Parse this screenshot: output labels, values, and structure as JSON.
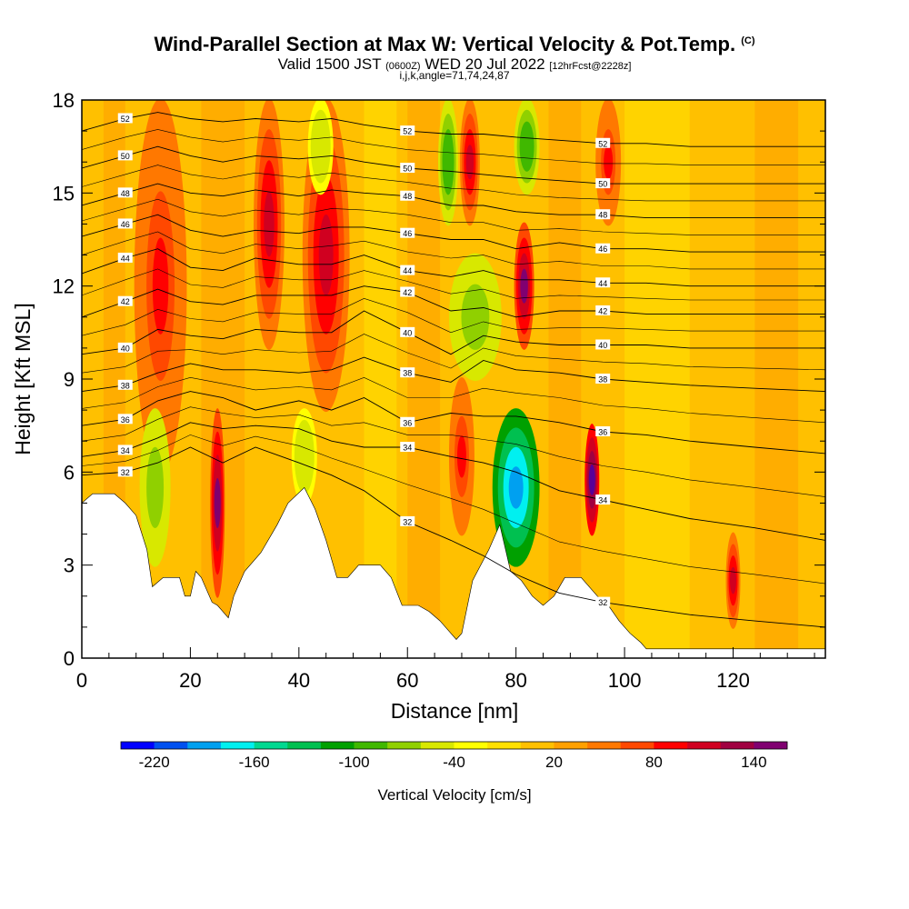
{
  "header": {
    "title_main": "Wind-Parallel Section at Max W: Vertical Velocity & Pot.Temp.",
    "title_mark": "(C)",
    "valid_prefix": "Valid 1500 JST",
    "valid_utc": "(0600Z)",
    "valid_date": "WED 20 Jul 2022",
    "forecast": "[12hrFcst@2228z]",
    "grid_info": "i,j,k,angle=71,74,24,87"
  },
  "chart_data": {
    "type": "heatmap",
    "xlabel": "Distance [nm]",
    "ylabel": "Height [Kft MSL]",
    "xlim": [
      0,
      137
    ],
    "ylim": [
      0,
      18
    ],
    "x_ticks": [
      0,
      20,
      40,
      60,
      80,
      100,
      120
    ],
    "y_ticks": [
      0,
      3,
      6,
      9,
      12,
      15,
      18
    ],
    "colorbar": {
      "title": "Vertical Velocity [cm/s]",
      "levels": [
        -240,
        -220,
        -200,
        -180,
        -160,
        -140,
        -120,
        -100,
        -80,
        -60,
        -40,
        -20,
        0,
        20,
        40,
        60,
        80,
        100,
        120,
        140,
        160
      ],
      "tick_labels": [
        -220,
        -160,
        -100,
        -40,
        20,
        80,
        140
      ],
      "colors": [
        "#0000ff",
        "#0050f0",
        "#00a0f0",
        "#00f0f0",
        "#00d890",
        "#00c050",
        "#00a000",
        "#40b800",
        "#90d000",
        "#d8e800",
        "#ffff00",
        "#ffe000",
        "#ffc000",
        "#ffa000",
        "#ff7800",
        "#ff4800",
        "#ff0000",
        "#d00020",
        "#a00040",
        "#800070",
        "#580098"
      ]
    },
    "terrain_kft": [
      [
        0,
        5.0
      ],
      [
        2,
        5.3
      ],
      [
        6,
        5.3
      ],
      [
        8,
        5.0
      ],
      [
        10,
        4.6
      ],
      [
        12,
        3.5
      ],
      [
        13,
        2.3
      ],
      [
        15,
        2.6
      ],
      [
        18,
        2.6
      ],
      [
        19,
        2.0
      ],
      [
        20,
        2.0
      ],
      [
        21,
        2.8
      ],
      [
        22,
        2.6
      ],
      [
        24,
        1.8
      ],
      [
        25,
        1.7
      ],
      [
        26,
        1.5
      ],
      [
        27,
        1.3
      ],
      [
        28,
        2.0
      ],
      [
        30,
        2.8
      ],
      [
        33,
        3.4
      ],
      [
        36,
        4.3
      ],
      [
        38,
        5.0
      ],
      [
        41,
        5.5
      ],
      [
        43,
        4.8
      ],
      [
        45,
        3.8
      ],
      [
        47,
        2.6
      ],
      [
        49,
        2.6
      ],
      [
        51,
        3.0
      ],
      [
        55,
        3.0
      ],
      [
        57,
        2.6
      ],
      [
        59,
        1.7
      ],
      [
        62,
        1.7
      ],
      [
        64,
        1.5
      ],
      [
        66,
        1.2
      ],
      [
        68,
        0.8
      ],
      [
        69,
        0.6
      ],
      [
        70,
        0.8
      ],
      [
        72,
        2.5
      ],
      [
        75,
        3.5
      ],
      [
        77,
        4.3
      ],
      [
        79,
        2.8
      ],
      [
        81,
        2.5
      ],
      [
        83,
        2.0
      ],
      [
        85,
        1.7
      ],
      [
        87,
        2.0
      ],
      [
        89,
        2.6
      ],
      [
        92,
        2.6
      ],
      [
        95,
        2.0
      ],
      [
        97,
        1.7
      ],
      [
        99,
        1.2
      ],
      [
        101,
        0.8
      ],
      [
        103,
        0.5
      ],
      [
        104,
        0.3
      ],
      [
        137,
        0.3
      ]
    ],
    "updraft_cores": [
      {
        "x0": 11,
        "x1": 18,
        "y0": 6,
        "y1": 18,
        "w": 80
      },
      {
        "x0": 25,
        "x1": 25,
        "y0": 2,
        "y1": 8,
        "w": 140
      },
      {
        "x0": 33,
        "x1": 36,
        "y0": 10,
        "y1": 18,
        "w": 100
      },
      {
        "x0": 42,
        "x1": 48,
        "y0": 8,
        "y1": 18,
        "w": 100
      },
      {
        "x0": 69,
        "x1": 71,
        "y0": 4,
        "y1": 9,
        "w": 80
      },
      {
        "x0": 71,
        "x1": 72,
        "y0": 14,
        "y1": 18,
        "w": 100
      },
      {
        "x0": 81,
        "x1": 82,
        "y0": 10,
        "y1": 14,
        "w": 140
      },
      {
        "x0": 94,
        "x1": 94,
        "y0": 4,
        "y1": 7.5,
        "w": 160
      },
      {
        "x0": 96,
        "x1": 98,
        "y0": 14,
        "y1": 18,
        "w": 80
      },
      {
        "x0": 120,
        "x1": 120,
        "y0": 1,
        "y1": 4,
        "w": 100
      }
    ],
    "downdraft_cores": [
      {
        "x0": 12,
        "x1": 15,
        "y0": 3,
        "y1": 8,
        "w": -80
      },
      {
        "x0": 40,
        "x1": 42,
        "y0": 5,
        "y1": 8,
        "w": -60
      },
      {
        "x0": 43,
        "x1": 45,
        "y0": 15,
        "y1": 18,
        "w": -60
      },
      {
        "x0": 67,
        "x1": 68,
        "y0": 14,
        "y1": 18,
        "w": -100
      },
      {
        "x0": 69,
        "x1": 76,
        "y0": 9,
        "y1": 13,
        "w": -80
      },
      {
        "x0": 77,
        "x1": 83,
        "y0": 3,
        "y1": 8,
        "w": -200
      },
      {
        "x0": 81,
        "x1": 83,
        "y0": 15,
        "y1": 18,
        "w": -100
      }
    ],
    "theta_contours": [
      {
        "level": 32,
        "label": "32",
        "y": [
          5.9,
          6.0,
          6.3,
          6.8,
          6.3,
          6.8,
          6.3,
          5.9,
          5.4,
          4.4,
          3.8,
          3.3,
          2.7,
          2.1,
          1.8,
          1.6,
          1.4,
          1.2,
          1.0
        ]
      },
      {
        "level": 34,
        "label": "34",
        "y": [
          6.5,
          6.7,
          7.1,
          7.6,
          7.4,
          7.5,
          7.4,
          7.0,
          6.8,
          6.8,
          6.5,
          6.3,
          6.0,
          5.4,
          5.1,
          4.8,
          4.5,
          4.2,
          3.8
        ]
      },
      {
        "level": 36,
        "label": "36",
        "y": [
          7.5,
          7.7,
          8.3,
          8.6,
          8.4,
          8.0,
          8.3,
          8.0,
          8.4,
          7.6,
          7.9,
          7.8,
          7.8,
          7.6,
          7.3,
          7.2,
          7.0,
          6.8,
          6.6
        ]
      },
      {
        "level": 38,
        "label": "38",
        "y": [
          8.6,
          8.8,
          9.2,
          9.5,
          9.3,
          9.3,
          9.2,
          9.3,
          9.7,
          9.2,
          8.9,
          9.6,
          9.3,
          9.2,
          9.0,
          8.9,
          8.8,
          8.7,
          8.6
        ]
      },
      {
        "level": 40,
        "label": "40",
        "y": [
          9.8,
          10.0,
          10.6,
          10.4,
          10.3,
          10.6,
          10.5,
          10.5,
          11.2,
          10.5,
          9.8,
          10.4,
          10.2,
          10.1,
          10.1,
          10.1,
          10.0,
          10.0,
          10.0
        ]
      },
      {
        "level": 42,
        "label": "42",
        "y": [
          11.0,
          11.5,
          11.9,
          11.5,
          11.4,
          11.7,
          11.7,
          11.7,
          12.0,
          11.8,
          11.2,
          11.3,
          11.0,
          11.2,
          11.2,
          11.1,
          11.1,
          11.1,
          11.1
        ]
      },
      {
        "level": 44,
        "label": "44",
        "y": [
          12.4,
          12.9,
          13.2,
          12.6,
          12.5,
          12.9,
          12.7,
          12.7,
          13.0,
          12.5,
          12.3,
          12.5,
          12.2,
          12.2,
          12.1,
          12.1,
          12.0,
          12.0,
          12.0
        ]
      },
      {
        "level": 46,
        "label": "46",
        "y": [
          13.6,
          14.0,
          14.3,
          13.8,
          13.6,
          13.8,
          13.7,
          13.9,
          13.9,
          13.7,
          13.5,
          13.5,
          13.2,
          13.4,
          13.2,
          13.2,
          13.1,
          13.1,
          13.1
        ]
      },
      {
        "level": 48,
        "label": "48",
        "y": [
          14.6,
          15.0,
          15.3,
          15.0,
          14.9,
          15.1,
          14.9,
          15.1,
          15.0,
          14.9,
          14.6,
          14.6,
          14.4,
          14.3,
          14.3,
          14.2,
          14.2,
          14.2,
          14.2
        ]
      },
      {
        "level": 50,
        "label": "50",
        "y": [
          15.8,
          16.2,
          16.5,
          16.2,
          16.0,
          16.2,
          16.1,
          16.2,
          16.0,
          15.8,
          15.7,
          15.6,
          15.5,
          15.4,
          15.3,
          15.3,
          15.3,
          15.3,
          15.3
        ]
      },
      {
        "level": 52,
        "label": "52",
        "y": [
          17.0,
          17.4,
          17.6,
          17.4,
          17.3,
          17.4,
          17.3,
          17.4,
          17.2,
          17.0,
          16.9,
          16.9,
          16.8,
          16.7,
          16.6,
          16.6,
          16.5,
          16.5,
          16.5
        ]
      }
    ],
    "contour_x": [
      0,
      8,
      14,
      20,
      26,
      32,
      40,
      46,
      52,
      60,
      68,
      74,
      80,
      88,
      96,
      104,
      112,
      124,
      137
    ]
  }
}
